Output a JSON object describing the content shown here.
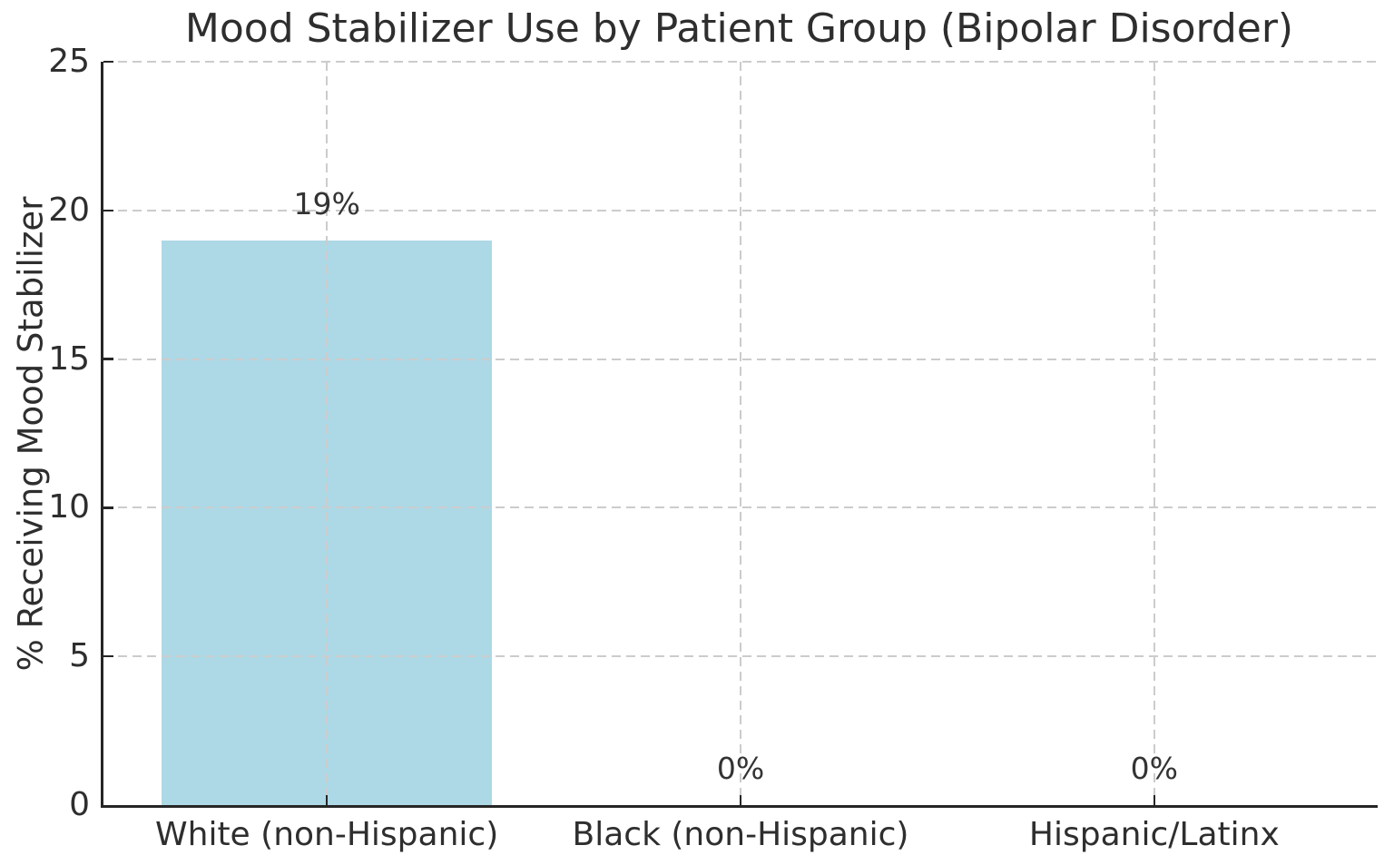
{
  "chart_data": {
    "type": "bar",
    "title": "Mood Stabilizer Use by Patient Group (Bipolar Disorder)",
    "ylabel": "% Receiving Mood Stabilizer",
    "xlabel": "",
    "categories": [
      "White (non-Hispanic)",
      "Black (non-Hispanic)",
      "Hispanic/Latinx"
    ],
    "values": [
      19,
      0,
      0
    ],
    "bar_value_labels": [
      "19%",
      "0%",
      "0%"
    ],
    "yticks": [
      0,
      5,
      10,
      15,
      20,
      25
    ],
    "ytick_labels": [
      "0",
      "5",
      "10",
      "15",
      "20",
      "25"
    ],
    "ylim": [
      0,
      25
    ],
    "xlim": [
      -0.54,
      2.54
    ],
    "bar_width_data_units": 0.8,
    "grid": {
      "horizontal": true,
      "vertical_at_categories": true,
      "line_style": "dashed",
      "drawn_above_bars": true
    },
    "ticks_direction": "in",
    "legend": false,
    "colors": {
      "bar": "#ADD8E6",
      "grid": "#cccccc",
      "axis": "#262626",
      "text": "#2e2e2e",
      "background": "#ffffff"
    }
  }
}
